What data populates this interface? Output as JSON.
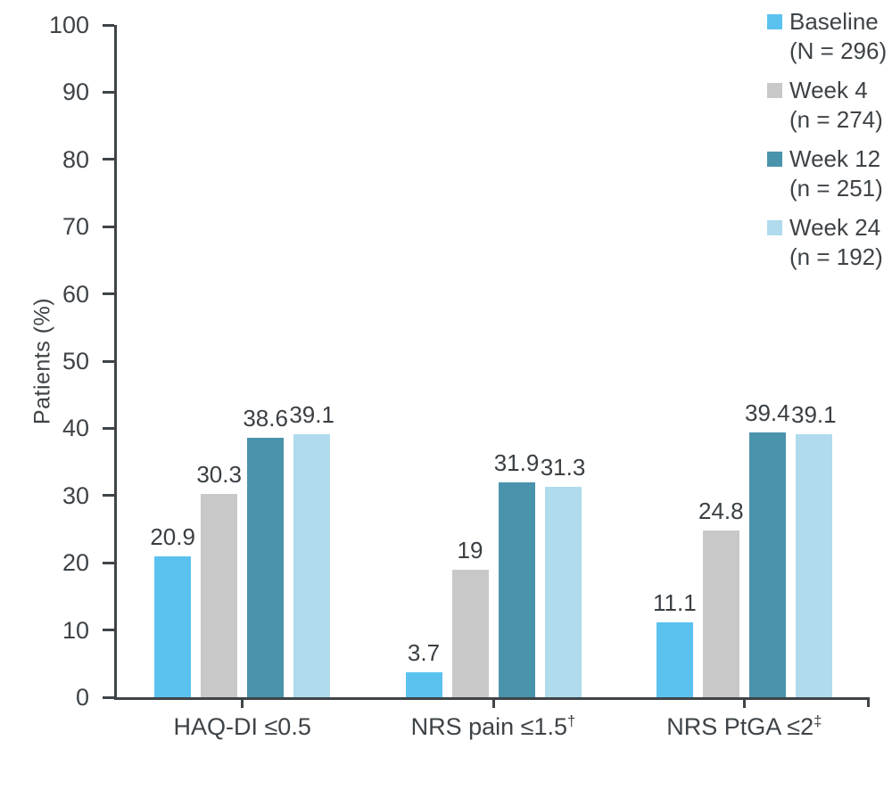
{
  "chart_data": {
    "type": "bar",
    "title": "",
    "ylabel": "Patients (%)",
    "xlabel": "",
    "ylim": [
      0,
      100
    ],
    "yticks": [
      0,
      10,
      20,
      30,
      40,
      50,
      60,
      70,
      80,
      90,
      100
    ],
    "grid": false,
    "legend_position": "top-right",
    "categories": [
      "HAQ-DI ≤0.5",
      "NRS pain ≤1.5†",
      "NRS PtGA ≤2‡"
    ],
    "series": [
      {
        "name": "Baseline",
        "sub": "(N = 296)",
        "color": "#5bc2ef",
        "values": [
          20.9,
          3.7,
          11.1
        ]
      },
      {
        "name": "Week 4",
        "sub": "(n = 274)",
        "color": "#c8c8c8",
        "values": [
          30.3,
          19,
          24.8
        ]
      },
      {
        "name": "Week 12",
        "sub": "(n = 251)",
        "color": "#4a93ac",
        "values": [
          38.6,
          31.9,
          39.4
        ]
      },
      {
        "name": "Week 24",
        "sub": "(n = 192)",
        "color": "#afdbec",
        "values": [
          39.1,
          31.3,
          39.1
        ]
      }
    ]
  },
  "colors": {
    "axis": "#3f4447",
    "text": "#3e4347",
    "background": "#ffffff"
  }
}
